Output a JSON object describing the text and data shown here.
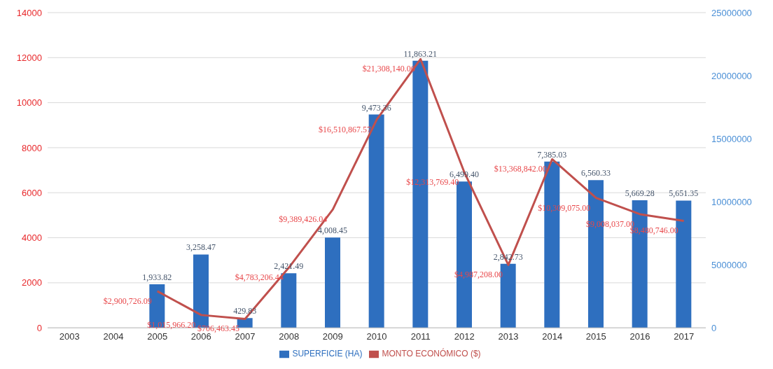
{
  "chart_data": {
    "type": "line",
    "categories": [
      "2003",
      "2004",
      "2005",
      "2006",
      "2007",
      "2008",
      "2009",
      "2010",
      "2011",
      "2012",
      "2013",
      "2014",
      "2015",
      "2016",
      "2017"
    ],
    "series": [
      {
        "name": "SUPERFICIE (HA)",
        "type": "bar",
        "color": "#2e6fbf",
        "values": [
          null,
          null,
          1933.82,
          3258.47,
          429.83,
          2421.49,
          4008.45,
          9473.36,
          11863.21,
          6499.4,
          2842.73,
          7385.03,
          6560.33,
          5669.28,
          5651.35
        ],
        "value_labels": [
          null,
          null,
          "1,933.82",
          "3,258.47",
          "429.83",
          "2,421.49",
          "4,008.45",
          "9,473.36",
          "11,863.21",
          "6,499.40",
          "2,842.73",
          "7,385.03",
          "6,560.33",
          "5,669.28",
          "5,651.35"
        ]
      },
      {
        "name": "MONTO ECONÓMICO ($)",
        "axis": "y2",
        "color": "#c0504d",
        "values": [
          null,
          null,
          2900726.09,
          1015966.2,
          706463.45,
          4783206.44,
          9389426.04,
          16510867.57,
          21308140.06,
          12313769.4,
          4987208.0,
          13368842.0,
          10309075.0,
          9008037.0,
          8480746.0
        ],
        "value_labels": [
          null,
          null,
          "$2,900,726.09",
          "$1,015,966.20",
          "$706,463.45",
          "$4,783,206.44",
          "$9,389,426.04",
          "$16,510,867.57",
          "$21,308,140.06",
          "$12,313,769.40",
          "$4,987,208.00",
          "$13,368,842.00",
          "$10,309,075.00",
          "$9,008,037.00",
          "$8,480,746.00"
        ]
      }
    ],
    "ylim": [
      0,
      14000
    ],
    "yticks": [
      0,
      2000,
      4000,
      6000,
      8000,
      10000,
      12000,
      14000
    ],
    "y2lim": [
      0,
      25000000
    ],
    "y2ticks": [
      0,
      5000000,
      10000000,
      15000000,
      20000000,
      25000000
    ],
    "grid": "y",
    "legend": "bottom",
    "marker": "none",
    "line_style": "solid"
  }
}
